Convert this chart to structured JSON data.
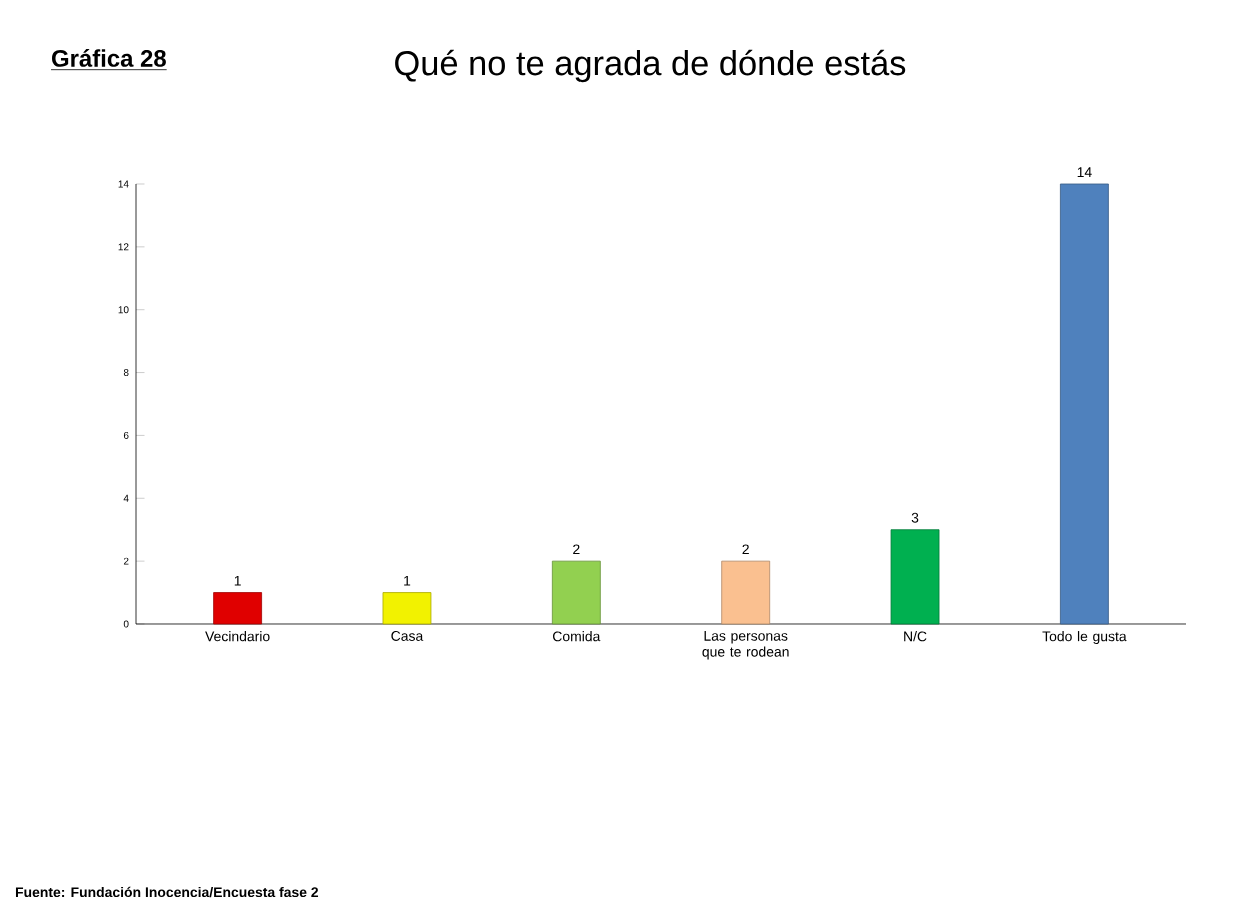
{
  "chart_data": {
    "type": "bar",
    "title": "Qué no te agrada de dónde estás",
    "categories": [
      "Vecindario",
      "Casa",
      "Comida",
      "Las personas que te rodean",
      "N/C",
      "Todo le gusta"
    ],
    "values": [
      1,
      1,
      2,
      2,
      3,
      14
    ],
    "colors": [
      "#e00000",
      "#f2f200",
      "#92d050",
      "#fac090",
      "#00b050",
      "#4f81bd"
    ],
    "ylim": [
      0,
      14
    ],
    "yticks": [
      0,
      2,
      4,
      6,
      8,
      10,
      12,
      14
    ],
    "data_labels": true,
    "annotations": [
      "Gráfica 28",
      "Fuente: Fundación Inocencia/Encuesta fase 2"
    ]
  }
}
